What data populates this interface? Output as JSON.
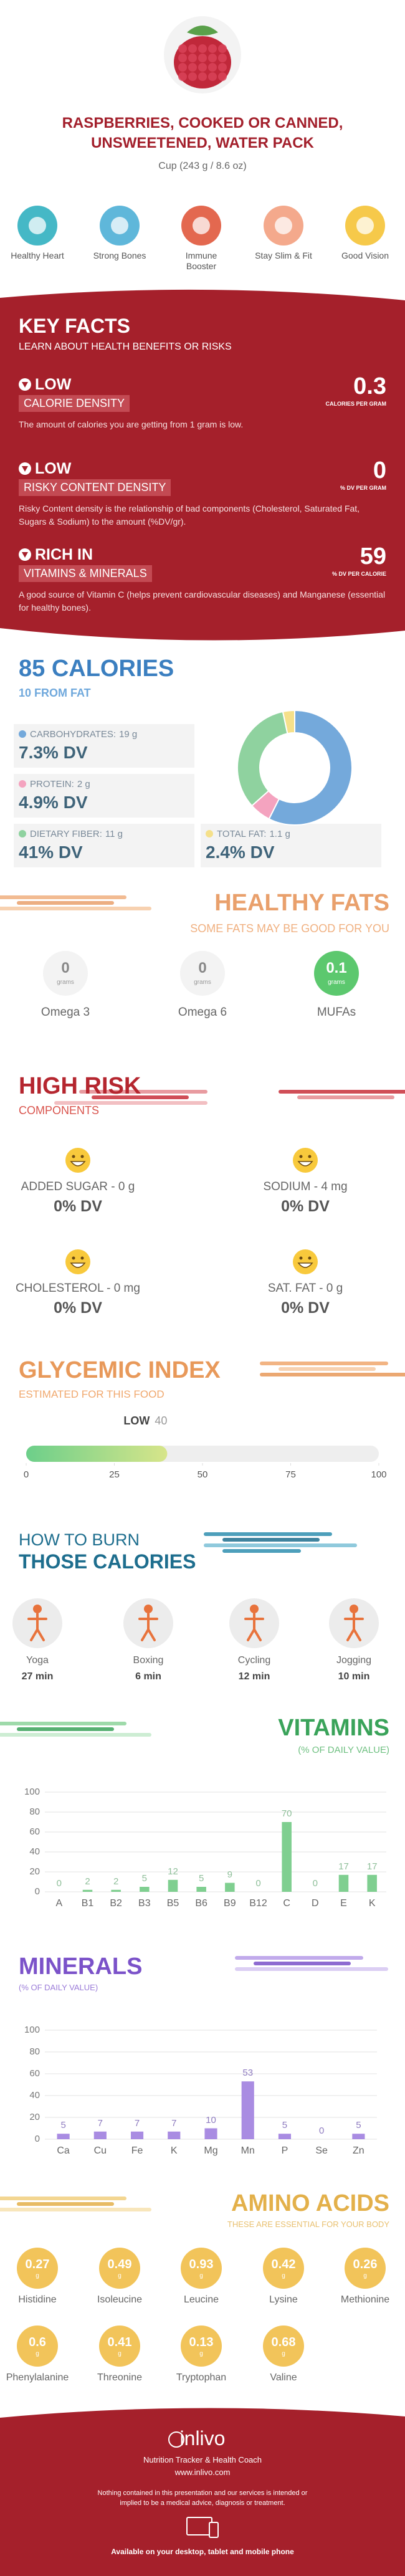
{
  "header": {
    "title": "RASPBERRIES, COOKED OR CANNED, UNSWEETENED, WATER PACK",
    "serving": "Cup (243 g / 8.6 oz)"
  },
  "benefits": [
    "Healthy Heart",
    "Strong Bones",
    "Immune Booster",
    "Stay Slim & Fit",
    "Good Vision"
  ],
  "key_facts": {
    "title": "KEY FACTS",
    "subtitle": "LEARN ABOUT HEALTH BENEFITS OR RISKS",
    "facts": [
      {
        "level": "LOW",
        "name": "CALORIE DENSITY",
        "value": 0.3,
        "unit": "CALORIES PER GRAM",
        "text": "The amount of calories you are getting from 1 gram is low."
      },
      {
        "level": "LOW",
        "name": "RISKY CONTENT DENSITY",
        "value": 0,
        "unit": "% DV PER GRAM",
        "text": "Risky Content density is the relationship of bad components (Cholesterol, Saturated Fat, Sugars & Sodium) to the amount (%DV/gr)."
      },
      {
        "level": "RICH IN",
        "name": "VITAMINS & MINERALS",
        "value": 59,
        "unit": "% DV PER CALORIE",
        "text": "A good source of Vitamin C (helps prevent cardiovascular diseases) and Manganese (essential for healthy bones)."
      }
    ]
  },
  "calories": {
    "title": "85 CALORIES",
    "subtitle": "10 FROM FAT",
    "nutrients": [
      {
        "name": "CARBOHYDRATES:",
        "value": 19,
        "value_label": "19 g",
        "dv": "7.3% DV",
        "color": "#74a9db"
      },
      {
        "name": "PROTEIN:",
        "value": 2,
        "value_label": "2 g",
        "dv": "4.9% DV",
        "color": "#f4a3bf"
      },
      {
        "name": "DIETARY FIBER:",
        "value": 11,
        "value_label": "11 g",
        "dv": "41% DV",
        "color": "#8fd29f"
      },
      {
        "name": "TOTAL FAT:",
        "value": 1.1,
        "value_label": "1.1 g",
        "dv": "2.4% DV",
        "color": "#f5e08a"
      }
    ]
  },
  "healthy_fats": {
    "title": "HEALTHY FATS",
    "subtitle": "SOME FATS MAY BE GOOD FOR YOU",
    "items": [
      {
        "name": "Omega 3",
        "value": 0,
        "unit": "grams"
      },
      {
        "name": "Omega 6",
        "value": 0,
        "unit": "grams"
      },
      {
        "name": "MUFAs",
        "value": 0.1,
        "unit": "grams"
      }
    ]
  },
  "high_risk": {
    "title": "HIGH RISK",
    "subtitle": "COMPONENTS",
    "items": [
      {
        "name": "ADDED SUGAR - 0 g",
        "dv": "0% DV"
      },
      {
        "name": "SODIUM - 4 mg",
        "dv": "0% DV"
      },
      {
        "name": "CHOLESTEROL - 0 mg",
        "dv": "0% DV"
      },
      {
        "name": "SAT. FAT - 0 g",
        "dv": "0% DV"
      }
    ]
  },
  "glycemic": {
    "title": "GLYCEMIC INDEX",
    "subtitle": "ESTIMATED FOR THIS FOOD",
    "level": "LOW",
    "value": 40,
    "xlim": [
      0,
      100
    ],
    "xticks": [
      0,
      25,
      50,
      75,
      100
    ]
  },
  "burn": {
    "title": "HOW TO BURN",
    "subtitle": "THOSE CALORIES",
    "activities": [
      {
        "name": "Yoga",
        "time": "27 min"
      },
      {
        "name": "Boxing",
        "time": "6 min"
      },
      {
        "name": "Cycling",
        "time": "12 min"
      },
      {
        "name": "Jogging",
        "time": "10 min"
      }
    ]
  },
  "vitamins": {
    "type": "bar",
    "title": "VITAMINS",
    "subtitle": "(% OF DAILY VALUE)",
    "categories": [
      "A",
      "B1",
      "B2",
      "B3",
      "B5",
      "B6",
      "B9",
      "B12",
      "C",
      "D",
      "E",
      "K"
    ],
    "values": [
      0,
      2,
      2,
      5,
      12,
      5,
      9,
      0,
      70,
      0,
      17,
      17
    ],
    "color": "#7fcf90",
    "ylim": [
      0,
      100
    ],
    "yticks": [
      0,
      20,
      40,
      60,
      80,
      100
    ]
  },
  "minerals": {
    "type": "bar",
    "title": "MINERALS",
    "subtitle": "(% OF DAILY VALUE)",
    "categories": [
      "Ca",
      "Cu",
      "Fe",
      "K",
      "Mg",
      "Mn",
      "P",
      "Se",
      "Zn"
    ],
    "values": [
      5,
      7,
      7,
      7,
      10,
      53,
      5,
      0,
      5
    ],
    "color": "#a98ce2",
    "ylim": [
      0,
      100
    ],
    "yticks": [
      0,
      20,
      40,
      60,
      80,
      100
    ]
  },
  "amino_acids": {
    "title": "AMINO ACIDS",
    "subtitle": "THESE ARE ESSENTIAL FOR YOUR BODY",
    "items": [
      {
        "name": "Histidine",
        "value": 0.27,
        "unit": "g"
      },
      {
        "name": "Isoleucine",
        "value": 0.49,
        "unit": "g"
      },
      {
        "name": "Leucine",
        "value": 0.93,
        "unit": "g"
      },
      {
        "name": "Lysine",
        "value": 0.42,
        "unit": "g"
      },
      {
        "name": "Methionine",
        "value": 0.26,
        "unit": "g"
      },
      {
        "name": "Phenylalanine",
        "value": 0.6,
        "unit": "g"
      },
      {
        "name": "Threonine",
        "value": 0.41,
        "unit": "g"
      },
      {
        "name": "Tryptophan",
        "value": 0.13,
        "unit": "g"
      },
      {
        "name": "Valine",
        "value": 0.68,
        "unit": "g"
      }
    ]
  },
  "footer": {
    "brand": "inlivo",
    "tagline": "Nutrition Tracker & Health Coach",
    "url": "www.inlivo.com",
    "disclaimer": "Nothing contained in this presentation and our services is intended or implied to be a medical advice, diagnosis or treatment.",
    "availability": "Available on your desktop, tablet and mobile phone"
  }
}
